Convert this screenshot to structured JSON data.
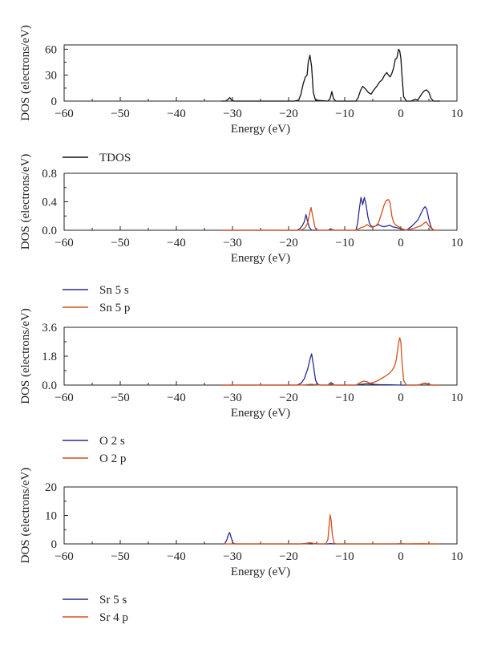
{
  "colors": {
    "black": "#111111",
    "blue": "#2b2c8c",
    "orange": "#d4501c",
    "axis": "#222222"
  },
  "chart_data": [
    {
      "type": "line",
      "xlabel": "Energy (eV)",
      "ylabel": "DOS (electrons/eV)",
      "xlim": [
        -60,
        10
      ],
      "ylim": [
        0,
        65
      ],
      "xticks": [
        -60,
        -50,
        -40,
        -30,
        -20,
        -10,
        0,
        10
      ],
      "yticks": [
        0,
        30,
        60
      ],
      "ytick_labels": [
        "0",
        "30",
        "60"
      ],
      "series": [
        {
          "name": "TDOS",
          "color": "#111111",
          "points": [
            [
              -32,
              0
            ],
            [
              -31.2,
              0
            ],
            [
              -30.8,
              2
            ],
            [
              -30.5,
              4
            ],
            [
              -30.1,
              1
            ],
            [
              -29.8,
              0
            ],
            [
              -19,
              0
            ],
            [
              -18.2,
              1
            ],
            [
              -17.8,
              8
            ],
            [
              -17.4,
              20
            ],
            [
              -17.0,
              28
            ],
            [
              -16.7,
              30
            ],
            [
              -16.5,
              45
            ],
            [
              -16.2,
              53
            ],
            [
              -15.9,
              40
            ],
            [
              -15.6,
              10
            ],
            [
              -15.2,
              1
            ],
            [
              -13,
              0
            ],
            [
              -12.6,
              3
            ],
            [
              -12.3,
              11
            ],
            [
              -12.0,
              3
            ],
            [
              -11.6,
              0
            ],
            [
              -8,
              0
            ],
            [
              -7.6,
              4
            ],
            [
              -7.2,
              12
            ],
            [
              -6.8,
              17
            ],
            [
              -6.3,
              14
            ],
            [
              -5.8,
              10
            ],
            [
              -5.3,
              8
            ],
            [
              -4.8,
              13
            ],
            [
              -4.3,
              17
            ],
            [
              -3.8,
              22
            ],
            [
              -3.3,
              25
            ],
            [
              -2.9,
              30
            ],
            [
              -2.5,
              33
            ],
            [
              -2.2,
              30
            ],
            [
              -1.9,
              28
            ],
            [
              -1.6,
              32
            ],
            [
              -1.3,
              38
            ],
            [
              -1.0,
              48
            ],
            [
              -0.7,
              50
            ],
            [
              -0.4,
              60
            ],
            [
              -0.2,
              58
            ],
            [
              0.0,
              50
            ],
            [
              0.2,
              30
            ],
            [
              0.5,
              5
            ],
            [
              1.0,
              0
            ],
            [
              1.8,
              0
            ],
            [
              2.2,
              1
            ],
            [
              2.6,
              2
            ],
            [
              3.0,
              1
            ],
            [
              3.4,
              5
            ],
            [
              3.8,
              9
            ],
            [
              4.2,
              12
            ],
            [
              4.6,
              13
            ],
            [
              5.0,
              10
            ],
            [
              5.4,
              3
            ],
            [
              5.8,
              0
            ],
            [
              7,
              0
            ]
          ]
        }
      ],
      "legend": [
        "TDOS"
      ]
    },
    {
      "type": "line",
      "xlabel": "Energy (eV)",
      "ylabel": "DOS (electrons/eV)",
      "xlim": [
        -60,
        10
      ],
      "ylim": [
        0,
        0.8
      ],
      "xticks": [
        -60,
        -50,
        -40,
        -30,
        -20,
        -10,
        0,
        10
      ],
      "yticks": [
        0,
        0.4,
        0.8
      ],
      "ytick_labels": [
        "0.0",
        "0.4",
        "0.8"
      ],
      "series": [
        {
          "name": "Sn 5 s",
          "color": "#2b2c8c",
          "points": [
            [
              -32,
              0
            ],
            [
              -18.5,
              0
            ],
            [
              -18.0,
              0.02
            ],
            [
              -17.6,
              0.06
            ],
            [
              -17.2,
              0.12
            ],
            [
              -16.9,
              0.22
            ],
            [
              -16.6,
              0.12
            ],
            [
              -16.3,
              0.04
            ],
            [
              -15.9,
              0
            ],
            [
              -13,
              0
            ],
            [
              -12.5,
              0.02
            ],
            [
              -12.2,
              0.01
            ],
            [
              -11.8,
              0
            ],
            [
              -8,
              0
            ],
            [
              -7.7,
              0.1
            ],
            [
              -7.4,
              0.3
            ],
            [
              -7.1,
              0.46
            ],
            [
              -6.8,
              0.36
            ],
            [
              -6.5,
              0.46
            ],
            [
              -6.2,
              0.36
            ],
            [
              -5.9,
              0.2
            ],
            [
              -5.6,
              0.1
            ],
            [
              -5.3,
              0.06
            ],
            [
              -5.0,
              0.05
            ],
            [
              -4.5,
              0.06
            ],
            [
              -4.0,
              0.08
            ],
            [
              -3.5,
              0.06
            ],
            [
              -3.0,
              0.05
            ],
            [
              -2.5,
              0.06
            ],
            [
              -2.0,
              0.07
            ],
            [
              -1.5,
              0.05
            ],
            [
              -1.0,
              0.04
            ],
            [
              -0.5,
              0.03
            ],
            [
              0,
              0.02
            ],
            [
              0.5,
              0.01
            ],
            [
              1.0,
              0
            ],
            [
              1.5,
              0.03
            ],
            [
              2.0,
              0.06
            ],
            [
              2.5,
              0.1
            ],
            [
              3.0,
              0.14
            ],
            [
              3.5,
              0.22
            ],
            [
              4.0,
              0.3
            ],
            [
              4.3,
              0.33
            ],
            [
              4.6,
              0.3
            ],
            [
              5.0,
              0.15
            ],
            [
              5.4,
              0.04
            ],
            [
              5.8,
              0
            ],
            [
              7,
              0
            ]
          ]
        },
        {
          "name": "Sn 5 p",
          "color": "#d4501c",
          "points": [
            [
              -32,
              0
            ],
            [
              -18,
              0
            ],
            [
              -17.5,
              0.01
            ],
            [
              -17.0,
              0.04
            ],
            [
              -16.6,
              0.1
            ],
            [
              -16.3,
              0.22
            ],
            [
              -16.0,
              0.32
            ],
            [
              -15.7,
              0.2
            ],
            [
              -15.3,
              0.04
            ],
            [
              -15.0,
              0
            ],
            [
              -13,
              0
            ],
            [
              -12.5,
              0.01
            ],
            [
              -12.0,
              0
            ],
            [
              -8,
              0
            ],
            [
              -7.5,
              0.02
            ],
            [
              -7.0,
              0.04
            ],
            [
              -6.5,
              0.05
            ],
            [
              -6.0,
              0.08
            ],
            [
              -5.5,
              0.05
            ],
            [
              -5.0,
              0.04
            ],
            [
              -4.5,
              0.06
            ],
            [
              -4.0,
              0.1
            ],
            [
              -3.5,
              0.22
            ],
            [
              -3.0,
              0.35
            ],
            [
              -2.6,
              0.42
            ],
            [
              -2.2,
              0.43
            ],
            [
              -1.9,
              0.38
            ],
            [
              -1.6,
              0.2
            ],
            [
              -1.3,
              0.12
            ],
            [
              -1.0,
              0.08
            ],
            [
              -0.6,
              0.06
            ],
            [
              -0.2,
              0.04
            ],
            [
              0.2,
              0.02
            ],
            [
              1.0,
              0
            ],
            [
              2.0,
              0.02
            ],
            [
              2.8,
              0.04
            ],
            [
              3.5,
              0.06
            ],
            [
              4.0,
              0.09
            ],
            [
              4.5,
              0.12
            ],
            [
              5.0,
              0.06
            ],
            [
              5.5,
              0.02
            ],
            [
              6.0,
              0
            ],
            [
              7,
              0
            ]
          ]
        }
      ],
      "legend": [
        "Sn 5 s",
        "Sn 5 p"
      ]
    },
    {
      "type": "line",
      "xlabel": "Energy (eV)",
      "ylabel": "DOS (electrons/eV)",
      "xlim": [
        -60,
        10
      ],
      "ylim": [
        0,
        3.6
      ],
      "xticks": [
        -60,
        -50,
        -40,
        -30,
        -20,
        -10,
        0,
        10
      ],
      "yticks": [
        0,
        1.8,
        3.6
      ],
      "ytick_labels": [
        "0.0",
        "1.8",
        "3.6"
      ],
      "series": [
        {
          "name": "O 2 s",
          "color": "#2b2c8c",
          "points": [
            [
              -32,
              0
            ],
            [
              -18.5,
              0
            ],
            [
              -17.8,
              0.1
            ],
            [
              -17.2,
              0.4
            ],
            [
              -16.6,
              1.0
            ],
            [
              -16.2,
              1.6
            ],
            [
              -15.9,
              1.95
            ],
            [
              -15.6,
              1.3
            ],
            [
              -15.2,
              0.3
            ],
            [
              -14.8,
              0.05
            ],
            [
              -14.5,
              0
            ],
            [
              -13,
              0
            ],
            [
              -12.5,
              0.15
            ],
            [
              -12.2,
              0.1
            ],
            [
              -11.8,
              0
            ],
            [
              -8,
              0
            ],
            [
              -7,
              0.05
            ],
            [
              -6,
              0.08
            ],
            [
              -5,
              0.05
            ],
            [
              -4,
              0.03
            ],
            [
              -2,
              0.02
            ],
            [
              0,
              0
            ],
            [
              3,
              0
            ],
            [
              3.5,
              0.04
            ],
            [
              4.2,
              0.12
            ],
            [
              4.8,
              0.08
            ],
            [
              5.5,
              0
            ],
            [
              7,
              0
            ]
          ]
        },
        {
          "name": "O 2 p",
          "color": "#d4501c",
          "points": [
            [
              -32,
              0
            ],
            [
              -18,
              0
            ],
            [
              -17,
              0.02
            ],
            [
              -16,
              0.05
            ],
            [
              -15,
              0.02
            ],
            [
              -14,
              0
            ],
            [
              -13,
              0
            ],
            [
              -12.6,
              0.08
            ],
            [
              -12.2,
              0.04
            ],
            [
              -11.8,
              0
            ],
            [
              -8,
              0
            ],
            [
              -7.5,
              0.1
            ],
            [
              -7.0,
              0.2
            ],
            [
              -6.5,
              0.25
            ],
            [
              -6.0,
              0.2
            ],
            [
              -5.5,
              0.12
            ],
            [
              -5.0,
              0.15
            ],
            [
              -4.5,
              0.22
            ],
            [
              -4.0,
              0.3
            ],
            [
              -3.5,
              0.4
            ],
            [
              -3.0,
              0.5
            ],
            [
              -2.5,
              0.62
            ],
            [
              -2.0,
              0.75
            ],
            [
              -1.5,
              0.95
            ],
            [
              -1.1,
              1.2
            ],
            [
              -0.8,
              1.6
            ],
            [
              -0.5,
              2.4
            ],
            [
              -0.2,
              2.95
            ],
            [
              0.0,
              2.7
            ],
            [
              0.2,
              1.5
            ],
            [
              0.5,
              0.3
            ],
            [
              1.0,
              0
            ],
            [
              3,
              0
            ],
            [
              3.6,
              0.05
            ],
            [
              4.2,
              0.1
            ],
            [
              4.8,
              0.06
            ],
            [
              5.5,
              0
            ],
            [
              7,
              0
            ]
          ]
        }
      ],
      "legend": [
        "O 2 s",
        "O 2 p"
      ]
    },
    {
      "type": "line",
      "xlabel": "Energy (eV)",
      "ylabel": "DOS (electrons/eV)",
      "xlim": [
        -60,
        10
      ],
      "ylim": [
        0,
        20
      ],
      "xticks": [
        -60,
        -50,
        -40,
        -30,
        -20,
        -10,
        0,
        10
      ],
      "yticks": [
        0,
        10,
        20
      ],
      "ytick_labels": [
        "0",
        "10",
        "20"
      ],
      "series": [
        {
          "name": "Sr 5 s",
          "color": "#2b2c8c",
          "points": [
            [
              -32,
              0
            ],
            [
              -31.4,
              0
            ],
            [
              -31.0,
              1.5
            ],
            [
              -30.7,
              3.5
            ],
            [
              -30.5,
              4.0
            ],
            [
              -30.2,
              2.0
            ],
            [
              -29.9,
              0.3
            ],
            [
              -29.6,
              0
            ],
            [
              -18,
              0
            ],
            [
              -17,
              0.1
            ],
            [
              -16.3,
              0.4
            ],
            [
              -15.8,
              0.2
            ],
            [
              -15,
              0
            ],
            [
              -13,
              0
            ],
            [
              -12.5,
              0.1
            ],
            [
              -12,
              0
            ],
            [
              7,
              0
            ]
          ]
        },
        {
          "name": "Sr 4 p",
          "color": "#d4501c",
          "points": [
            [
              -32,
              0
            ],
            [
              -17,
              0
            ],
            [
              -16.5,
              0.2
            ],
            [
              -16.0,
              0.4
            ],
            [
              -15.5,
              0.15
            ],
            [
              -15,
              0
            ],
            [
              -13.4,
              0
            ],
            [
              -13.0,
              1.5
            ],
            [
              -12.8,
              6
            ],
            [
              -12.6,
              10.2
            ],
            [
              -12.4,
              8
            ],
            [
              -12.2,
              3
            ],
            [
              -11.9,
              0.3
            ],
            [
              -11.6,
              0
            ],
            [
              -1,
              0
            ],
            [
              0,
              0.1
            ],
            [
              1,
              0
            ],
            [
              4,
              0.05
            ],
            [
              5,
              0
            ],
            [
              7,
              0
            ]
          ]
        }
      ],
      "legend": [
        "Sr 5 s",
        "Sr 4 p"
      ]
    }
  ]
}
